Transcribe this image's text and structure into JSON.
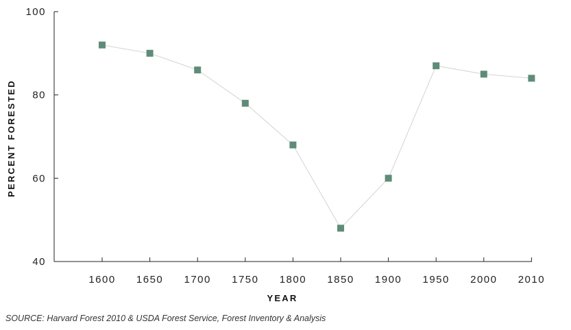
{
  "chart_data": {
    "type": "line",
    "title": "",
    "xlabel": "YEAR",
    "ylabel": "PERCENT FORESTED",
    "categories": [
      "1600",
      "1650",
      "1700",
      "1750",
      "1800",
      "1850",
      "1900",
      "1950",
      "2000",
      "2010"
    ],
    "series": [
      {
        "values": [
          92,
          90,
          86,
          78,
          68,
          48,
          60,
          87,
          85,
          84
        ]
      }
    ],
    "ylim": [
      40,
      100
    ],
    "yticks": [
      "40",
      "60",
      "80",
      "100"
    ],
    "grid": false,
    "legend": "none",
    "marker": "square",
    "colors": {
      "marker": "#5f8c78",
      "line": "#d3d3d3",
      "axis": "#222222"
    }
  },
  "source_note": "SOURCE: Harvard Forest 2010 & USDA Forest Service, Forest Inventory & Analysis"
}
